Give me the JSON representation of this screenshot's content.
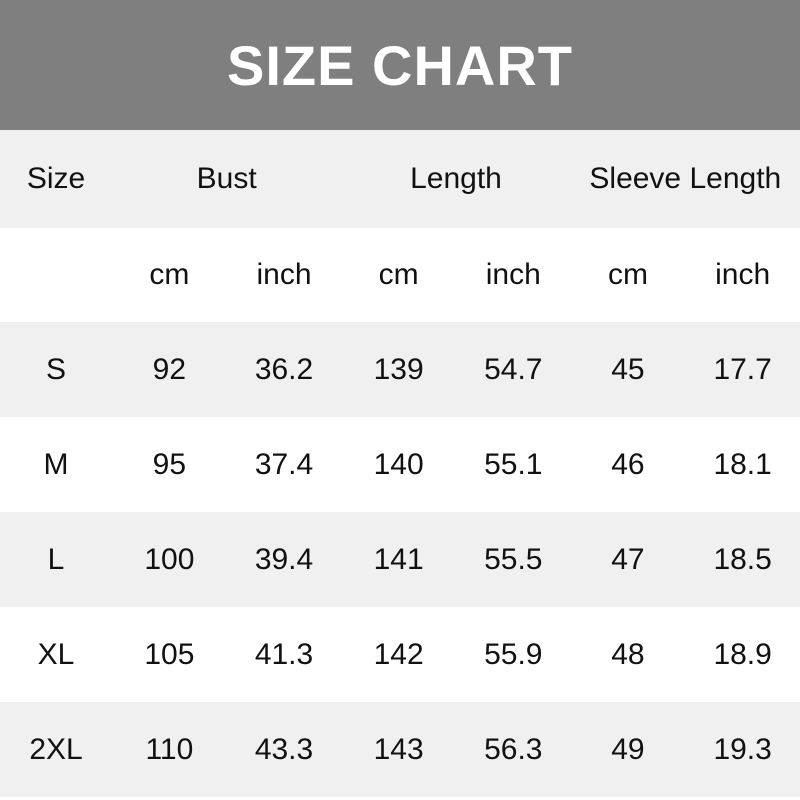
{
  "title": "SIZE CHART",
  "header": {
    "size": "Size",
    "groups": [
      "Bust",
      "Length",
      "Sleeve Length"
    ]
  },
  "units": [
    "cm",
    "inch",
    "cm",
    "inch",
    "cm",
    "inch"
  ],
  "rows": [
    {
      "size": "S",
      "values": [
        "92",
        "36.2",
        "139",
        "54.7",
        "45",
        "17.7"
      ]
    },
    {
      "size": "M",
      "values": [
        "95",
        "37.4",
        "140",
        "55.1",
        "46",
        "18.1"
      ]
    },
    {
      "size": "L",
      "values": [
        "100",
        "39.4",
        "141",
        "55.5",
        "47",
        "18.5"
      ]
    },
    {
      "size": "XL",
      "values": [
        "105",
        "41.3",
        "142",
        "55.9",
        "48",
        "18.9"
      ]
    },
    {
      "size": "2XL",
      "values": [
        "110",
        "43.3",
        "143",
        "56.3",
        "49",
        "19.3"
      ]
    }
  ],
  "colors": {
    "title_bar": "#7f7f7f",
    "shade_row": "#f0f0f0",
    "plain_row": "#ffffff"
  }
}
